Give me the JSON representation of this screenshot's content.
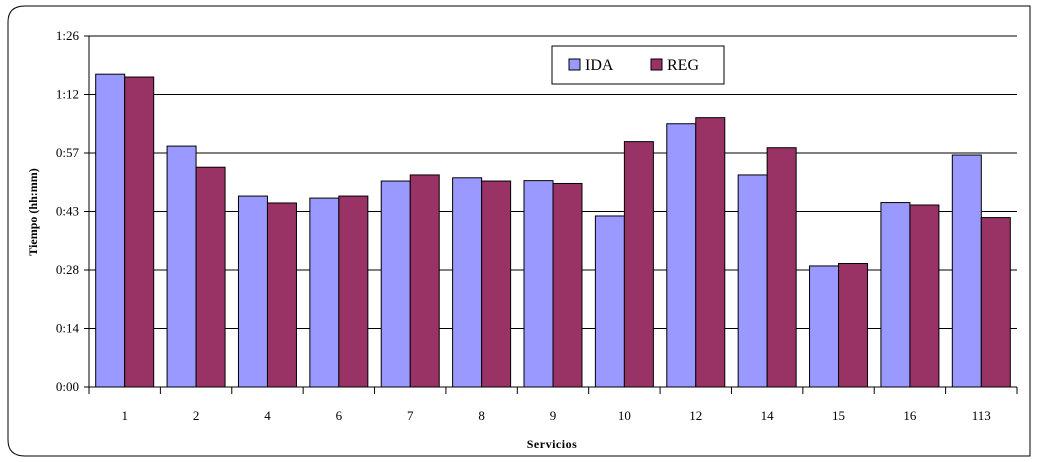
{
  "chart_data": {
    "type": "bar",
    "title": "",
    "xlabel": "Servicios",
    "ylabel": "Tiempo (hh:mm)",
    "categories": [
      "1",
      "2",
      "4",
      "6",
      "7",
      "8",
      "9",
      "10",
      "12",
      "14",
      "15",
      "16",
      "113"
    ],
    "y_ticks": [
      "0:00",
      "0:14",
      "0:28",
      "0:43",
      "0:57",
      "1:12",
      "1:26"
    ],
    "ylim_minutes": [
      0,
      86.4
    ],
    "value_unit": "minutes",
    "grid": true,
    "legend_position": "top-center",
    "series": [
      {
        "name": "IDA",
        "color": "#9999ff",
        "values": [
          77.0,
          59.3,
          47.0,
          46.5,
          50.7,
          51.5,
          50.8,
          42.1,
          64.8,
          52.2,
          29.8,
          45.4,
          57.1
        ]
      },
      {
        "name": "REG",
        "color": "#993366",
        "values": [
          76.3,
          54.1,
          45.3,
          47.0,
          52.2,
          50.7,
          50.1,
          60.4,
          66.3,
          58.9,
          30.4,
          44.8,
          41.7
        ]
      }
    ]
  }
}
